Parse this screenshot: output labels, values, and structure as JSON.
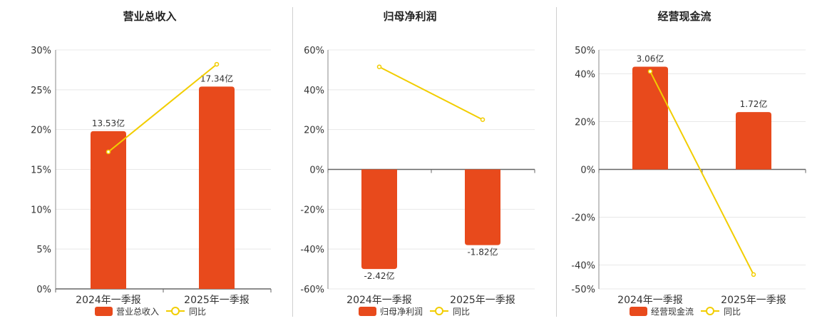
{
  "colors": {
    "bar": "#e84a1c",
    "line": "#f2cd00",
    "axis": "#666666",
    "grid": "#e8e8e8",
    "text": "#333333"
  },
  "chart_data": [
    {
      "type": "bar",
      "title": "营业总收入",
      "categories": [
        "2024年一季报",
        "2025年一季报"
      ],
      "series": [
        {
          "name": "营业总收入",
          "type": "bar",
          "values": [
            19.8,
            25.4
          ],
          "labels": [
            "13.53亿",
            "17.34亿"
          ]
        },
        {
          "name": "同比",
          "type": "line",
          "values": [
            17.2,
            28.2
          ]
        }
      ],
      "ylim": [
        0,
        30
      ],
      "yticks": [
        "0%",
        "5%",
        "10%",
        "15%",
        "20%",
        "25%",
        "30%"
      ],
      "grid": true,
      "legend_position": "bottom"
    },
    {
      "type": "bar",
      "title": "归母净利润",
      "categories": [
        "2024年一季报",
        "2025年一季报"
      ],
      "series": [
        {
          "name": "归母净利润",
          "type": "bar",
          "values": [
            -50,
            -38
          ],
          "labels": [
            "-2.42亿",
            "-1.82亿"
          ]
        },
        {
          "name": "同比",
          "type": "line",
          "values": [
            51.5,
            25
          ]
        }
      ],
      "ylim": [
        -60,
        60
      ],
      "yticks": [
        "-60%",
        "-40%",
        "-20%",
        "0%",
        "20%",
        "40%",
        "60%"
      ],
      "grid": true,
      "legend_position": "bottom"
    },
    {
      "type": "bar",
      "title": "经营现金流",
      "categories": [
        "2024年一季报",
        "2025年一季报"
      ],
      "series": [
        {
          "name": "经营现金流",
          "type": "bar",
          "values": [
            43,
            24
          ],
          "labels": [
            "3.06亿",
            "1.72亿"
          ]
        },
        {
          "name": "同比",
          "type": "line",
          "values": [
            41,
            -44
          ]
        }
      ],
      "ylim": [
        -50,
        50
      ],
      "yticks": [
        "-50%",
        "-40%",
        "-20%",
        "0%",
        "20%",
        "40%",
        "50%"
      ],
      "grid": true,
      "legend_position": "bottom"
    }
  ]
}
